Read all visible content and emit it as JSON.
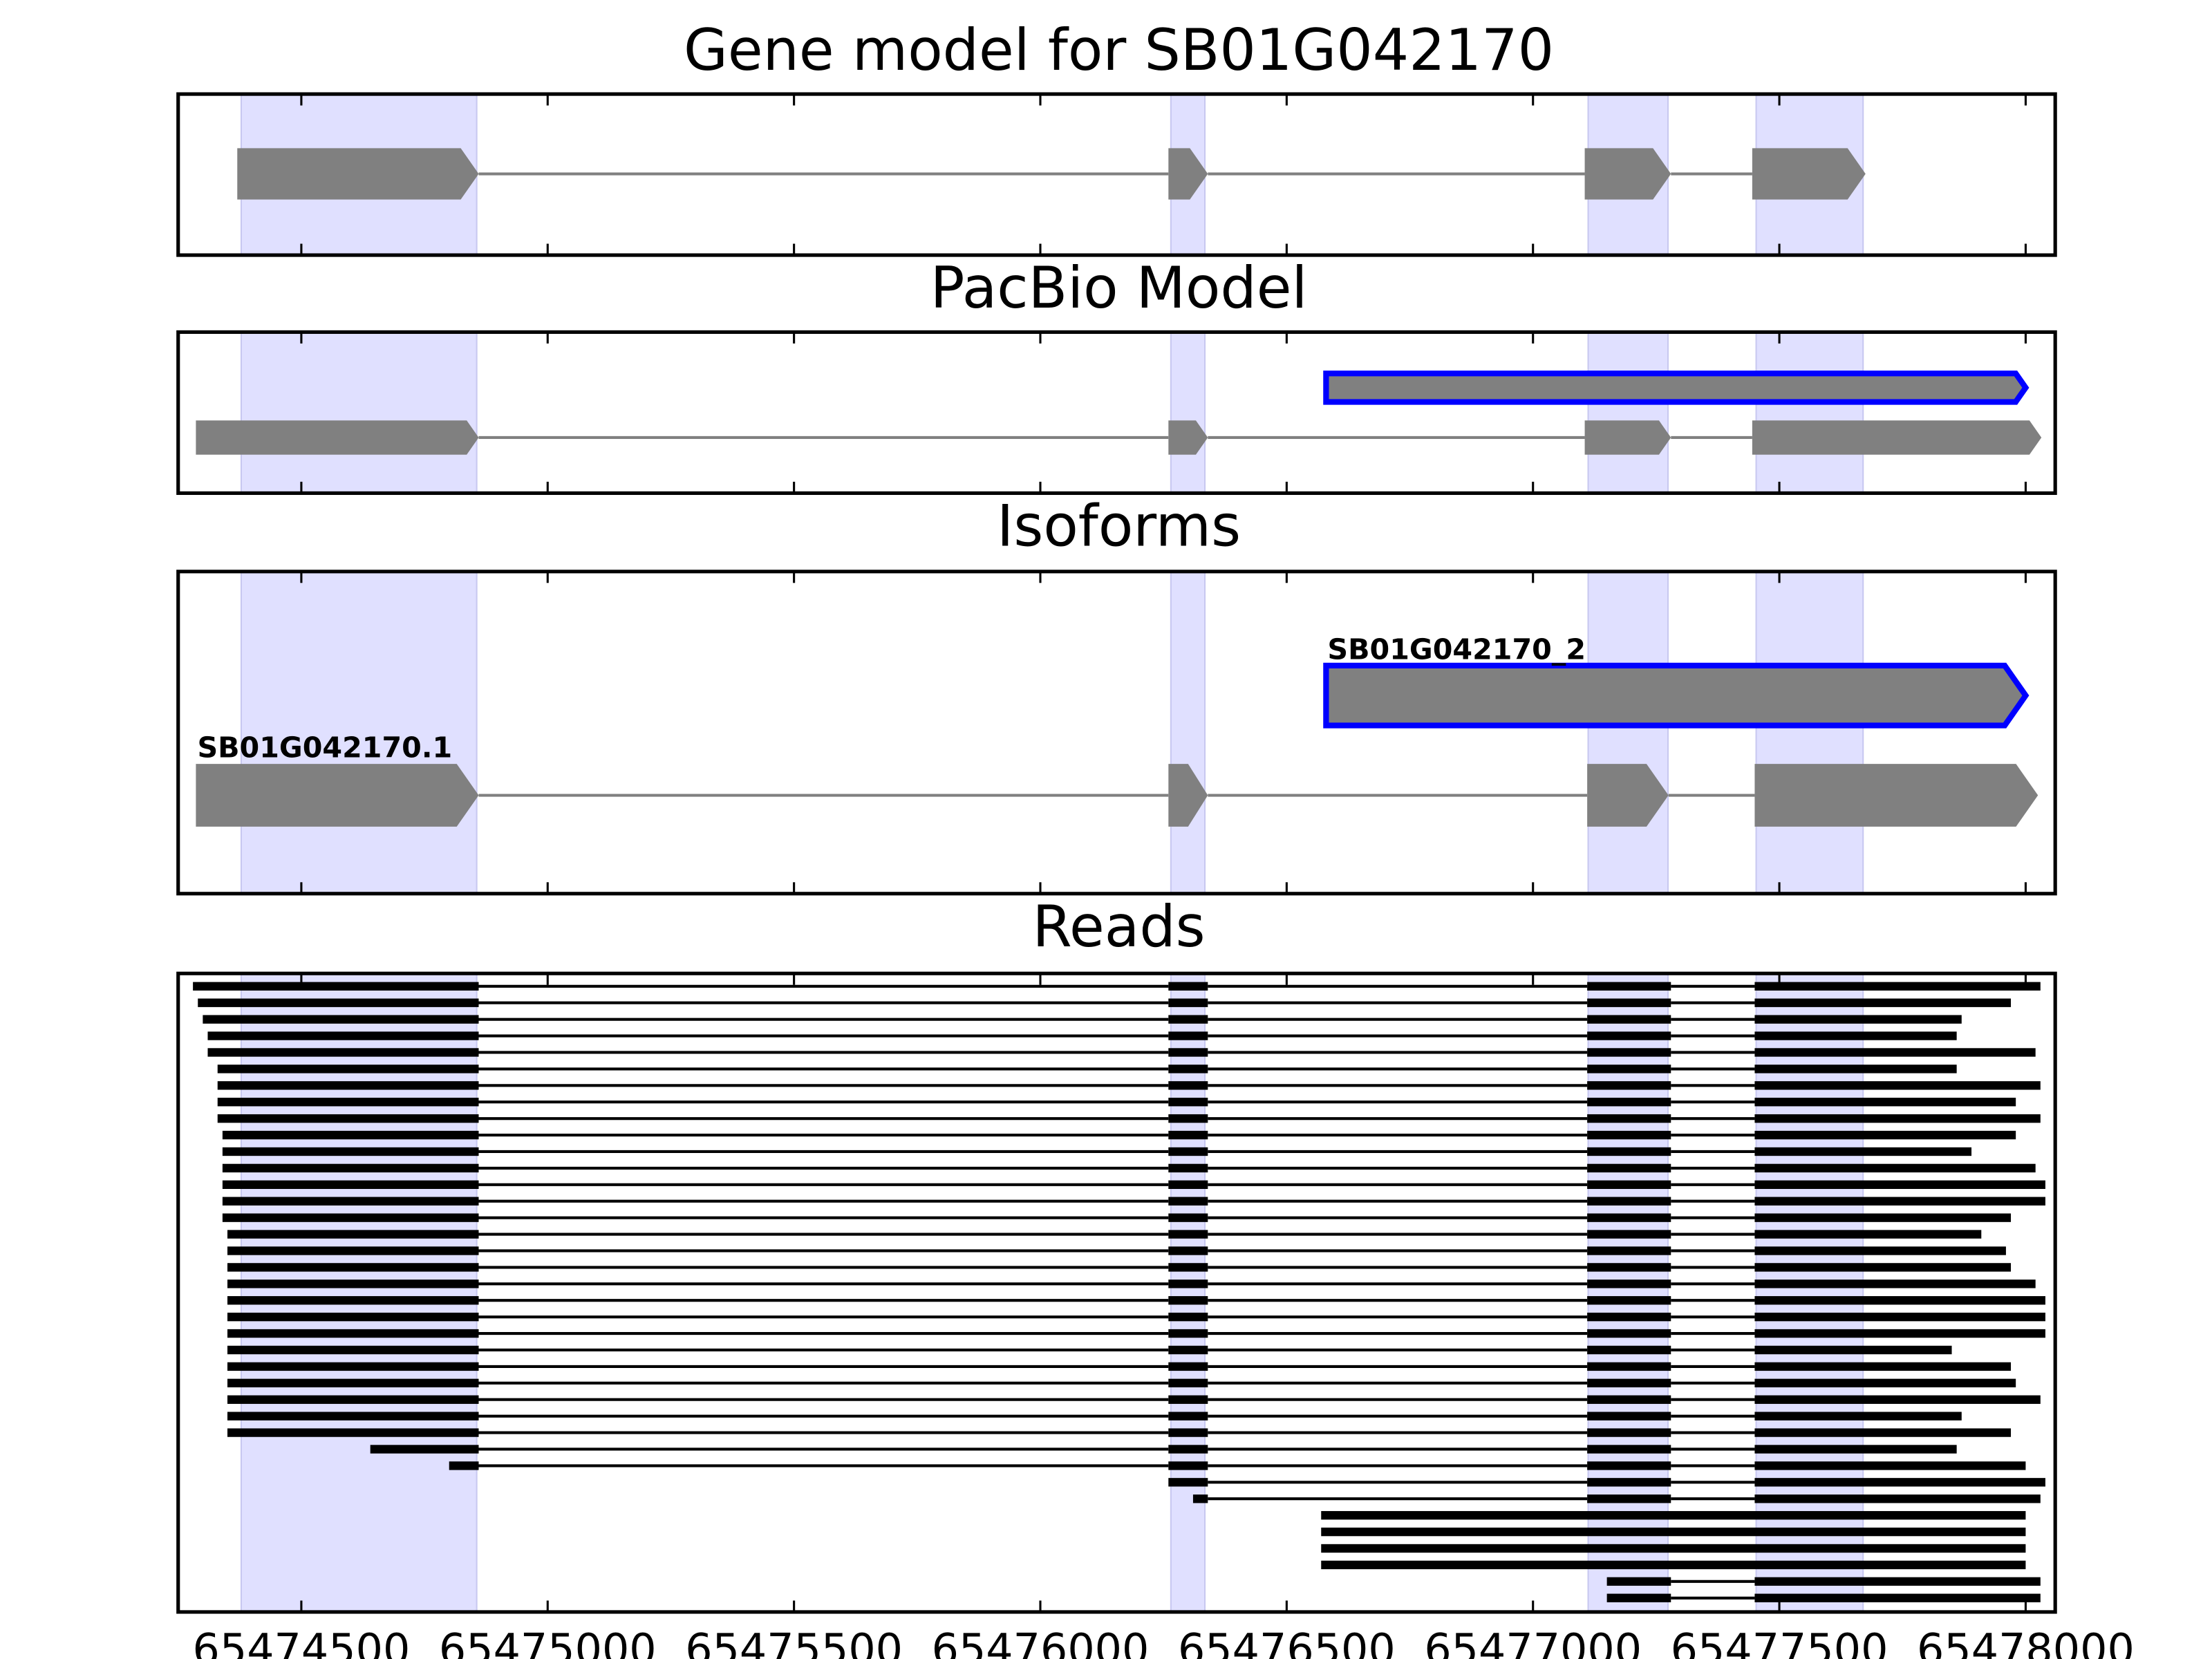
{
  "chart_data": [
    {
      "type": "gene-track",
      "title": "Gene model for SB01G042170",
      "xlim": [
        65474250,
        65478060
      ],
      "xticks": [
        65474500,
        65475000,
        65475500,
        65476000,
        65476500,
        65477000,
        65477500,
        65478000
      ],
      "highlights": [
        [
          65474378,
          65474856
        ],
        [
          65476265,
          65476334
        ],
        [
          65477112,
          65477274
        ],
        [
          65477453,
          65477670
        ]
      ],
      "highlight_color": "#e0e0ff",
      "color": "#808080",
      "outline_color": "#0000ff",
      "transcripts": [
        {
          "exons": [
            [
              65474370,
              65474860
            ],
            [
              65476260,
              65476340
            ],
            [
              65477105,
              65477280
            ],
            [
              65477445,
              65477675
            ]
          ]
        }
      ]
    },
    {
      "type": "gene-track",
      "title": "PacBio Model",
      "xlim": [
        65474250,
        65478060
      ],
      "xticks": [
        65474500,
        65475000,
        65475500,
        65476000,
        65476500,
        65477000,
        65477500,
        65478000
      ],
      "highlights": [
        [
          65474378,
          65474856
        ],
        [
          65476265,
          65476334
        ],
        [
          65477112,
          65477274
        ],
        [
          65477453,
          65477670
        ]
      ],
      "highlight_color": "#e0e0ff",
      "color": "#808080",
      "outline_color": "#0000ff",
      "transcripts": [
        {
          "outlined": true,
          "exons": [
            [
              65476580,
              65478000
            ]
          ]
        },
        {
          "exons": [
            [
              65474286,
              65474860
            ],
            [
              65476260,
              65476340
            ],
            [
              65477105,
              65477280
            ],
            [
              65477445,
              65478032
            ]
          ]
        }
      ]
    },
    {
      "type": "gene-track",
      "title": "Isoforms",
      "xlim": [
        65474250,
        65478060
      ],
      "xticks": [
        65474500,
        65475000,
        65475500,
        65476000,
        65476500,
        65477000,
        65477500,
        65478000
      ],
      "highlights": [
        [
          65474378,
          65474856
        ],
        [
          65476265,
          65476334
        ],
        [
          65477112,
          65477274
        ],
        [
          65477453,
          65477670
        ]
      ],
      "highlight_color": "#e0e0ff",
      "color": "#808080",
      "outline_color": "#0000ff",
      "transcripts": [
        {
          "label": "SB01G042170_2",
          "outlined": true,
          "exons": [
            [
              65476580,
              65478000
            ]
          ]
        },
        {
          "label": "SB01G042170.1",
          "exons": [
            [
              65474286,
              65474860
            ],
            [
              65476260,
              65476340
            ],
            [
              65477110,
              65477275
            ],
            [
              65477450,
              65478025
            ]
          ]
        }
      ]
    },
    {
      "type": "reads",
      "title": "Reads",
      "xlim": [
        65474250,
        65478060
      ],
      "xticks": [
        65474500,
        65475000,
        65475500,
        65476000,
        65476500,
        65477000,
        65477500,
        65478000
      ],
      "highlights": [
        [
          65474378,
          65474856
        ],
        [
          65476265,
          65476334
        ],
        [
          65477112,
          65477274
        ],
        [
          65477453,
          65477670
        ]
      ],
      "highlight_color": "#e0e0ff",
      "color": "#000000",
      "reads": [
        {
          "blocks": [
            [
              65474280,
              65474860
            ],
            [
              65476260,
              65476340
            ],
            [
              65477110,
              65477280
            ],
            [
              65477450,
              65478030
            ]
          ]
        },
        {
          "blocks": [
            [
              65474290,
              65474860
            ],
            [
              65476260,
              65476340
            ],
            [
              65477110,
              65477280
            ],
            [
              65477450,
              65477970
            ]
          ]
        },
        {
          "blocks": [
            [
              65474300,
              65474860
            ],
            [
              65476260,
              65476340
            ],
            [
              65477110,
              65477280
            ],
            [
              65477450,
              65477870
            ]
          ]
        },
        {
          "blocks": [
            [
              65474310,
              65474860
            ],
            [
              65476260,
              65476340
            ],
            [
              65477110,
              65477280
            ],
            [
              65477450,
              65477860
            ]
          ]
        },
        {
          "blocks": [
            [
              65474310,
              65474860
            ],
            [
              65476260,
              65476340
            ],
            [
              65477110,
              65477280
            ],
            [
              65477450,
              65478020
            ]
          ]
        },
        {
          "blocks": [
            [
              65474330,
              65474860
            ],
            [
              65476260,
              65476340
            ],
            [
              65477110,
              65477280
            ],
            [
              65477450,
              65477860
            ]
          ]
        },
        {
          "blocks": [
            [
              65474330,
              65474860
            ],
            [
              65476260,
              65476340
            ],
            [
              65477110,
              65477280
            ],
            [
              65477450,
              65478030
            ]
          ]
        },
        {
          "blocks": [
            [
              65474330,
              65474860
            ],
            [
              65476260,
              65476340
            ],
            [
              65477110,
              65477280
            ],
            [
              65477450,
              65477980
            ]
          ]
        },
        {
          "blocks": [
            [
              65474330,
              65474860
            ],
            [
              65476260,
              65476340
            ],
            [
              65477110,
              65477280
            ],
            [
              65477450,
              65478030
            ]
          ]
        },
        {
          "blocks": [
            [
              65474340,
              65474860
            ],
            [
              65476260,
              65476340
            ],
            [
              65477110,
              65477280
            ],
            [
              65477450,
              65477980
            ]
          ]
        },
        {
          "blocks": [
            [
              65474340,
              65474860
            ],
            [
              65476260,
              65476340
            ],
            [
              65477110,
              65477280
            ],
            [
              65477450,
              65477890
            ]
          ]
        },
        {
          "blocks": [
            [
              65474340,
              65474860
            ],
            [
              65476260,
              65476340
            ],
            [
              65477110,
              65477280
            ],
            [
              65477450,
              65478020
            ]
          ]
        },
        {
          "blocks": [
            [
              65474340,
              65474860
            ],
            [
              65476260,
              65476340
            ],
            [
              65477110,
              65477280
            ],
            [
              65477450,
              65478040
            ]
          ]
        },
        {
          "blocks": [
            [
              65474340,
              65474860
            ],
            [
              65476260,
              65476340
            ],
            [
              65477110,
              65477280
            ],
            [
              65477450,
              65478040
            ]
          ]
        },
        {
          "blocks": [
            [
              65474340,
              65474860
            ],
            [
              65476260,
              65476340
            ],
            [
              65477110,
              65477280
            ],
            [
              65477450,
              65477970
            ]
          ]
        },
        {
          "blocks": [
            [
              65474350,
              65474860
            ],
            [
              65476260,
              65476340
            ],
            [
              65477110,
              65477280
            ],
            [
              65477450,
              65477910
            ]
          ]
        },
        {
          "blocks": [
            [
              65474350,
              65474860
            ],
            [
              65476260,
              65476340
            ],
            [
              65477110,
              65477280
            ],
            [
              65477450,
              65477960
            ]
          ]
        },
        {
          "blocks": [
            [
              65474350,
              65474860
            ],
            [
              65476260,
              65476340
            ],
            [
              65477110,
              65477280
            ],
            [
              65477450,
              65477970
            ]
          ]
        },
        {
          "blocks": [
            [
              65474350,
              65474860
            ],
            [
              65476260,
              65476340
            ],
            [
              65477110,
              65477280
            ],
            [
              65477450,
              65478020
            ]
          ]
        },
        {
          "blocks": [
            [
              65474350,
              65474860
            ],
            [
              65476260,
              65476340
            ],
            [
              65477110,
              65477280
            ],
            [
              65477450,
              65478040
            ]
          ]
        },
        {
          "blocks": [
            [
              65474350,
              65474860
            ],
            [
              65476260,
              65476340
            ],
            [
              65477110,
              65477280
            ],
            [
              65477450,
              65478040
            ]
          ]
        },
        {
          "blocks": [
            [
              65474350,
              65474860
            ],
            [
              65476260,
              65476340
            ],
            [
              65477110,
              65477280
            ],
            [
              65477450,
              65478040
            ]
          ]
        },
        {
          "blocks": [
            [
              65474350,
              65474860
            ],
            [
              65476260,
              65476340
            ],
            [
              65477110,
              65477280
            ],
            [
              65477450,
              65477850
            ]
          ]
        },
        {
          "blocks": [
            [
              65474350,
              65474860
            ],
            [
              65476260,
              65476340
            ],
            [
              65477110,
              65477280
            ],
            [
              65477450,
              65477970
            ]
          ]
        },
        {
          "blocks": [
            [
              65474350,
              65474860
            ],
            [
              65476260,
              65476340
            ],
            [
              65477110,
              65477280
            ],
            [
              65477450,
              65477980
            ]
          ]
        },
        {
          "blocks": [
            [
              65474350,
              65474860
            ],
            [
              65476260,
              65476340
            ],
            [
              65477110,
              65477280
            ],
            [
              65477450,
              65478030
            ]
          ]
        },
        {
          "blocks": [
            [
              65474350,
              65474860
            ],
            [
              65476260,
              65476340
            ],
            [
              65477110,
              65477280
            ],
            [
              65477450,
              65477870
            ]
          ]
        },
        {
          "blocks": [
            [
              65474350,
              65474860
            ],
            [
              65476260,
              65476340
            ],
            [
              65477110,
              65477280
            ],
            [
              65477450,
              65477970
            ]
          ]
        },
        {
          "blocks": [
            [
              65474640,
              65474860
            ],
            [
              65476260,
              65476340
            ],
            [
              65477110,
              65477280
            ],
            [
              65477450,
              65477860
            ]
          ]
        },
        {
          "blocks": [
            [
              65474800,
              65474860
            ],
            [
              65476260,
              65476340
            ],
            [
              65477110,
              65477280
            ],
            [
              65477450,
              65478000
            ]
          ]
        },
        {
          "blocks": [
            [
              65476260,
              65476340
            ],
            [
              65477110,
              65477280
            ],
            [
              65477450,
              65478040
            ]
          ]
        },
        {
          "blocks": [
            [
              65476310,
              65476340
            ],
            [
              65477110,
              65477280
            ],
            [
              65477450,
              65478030
            ]
          ]
        },
        {
          "blocks": [
            [
              65476570,
              65478000
            ]
          ]
        },
        {
          "blocks": [
            [
              65476570,
              65478000
            ]
          ]
        },
        {
          "blocks": [
            [
              65476570,
              65478000
            ]
          ]
        },
        {
          "blocks": [
            [
              65476570,
              65478000
            ]
          ]
        },
        {
          "blocks": [
            [
              65477150,
              65477280
            ],
            [
              65477450,
              65478030
            ]
          ]
        },
        {
          "blocks": [
            [
              65477150,
              65477280
            ],
            [
              65477450,
              65478030
            ]
          ]
        }
      ]
    }
  ]
}
